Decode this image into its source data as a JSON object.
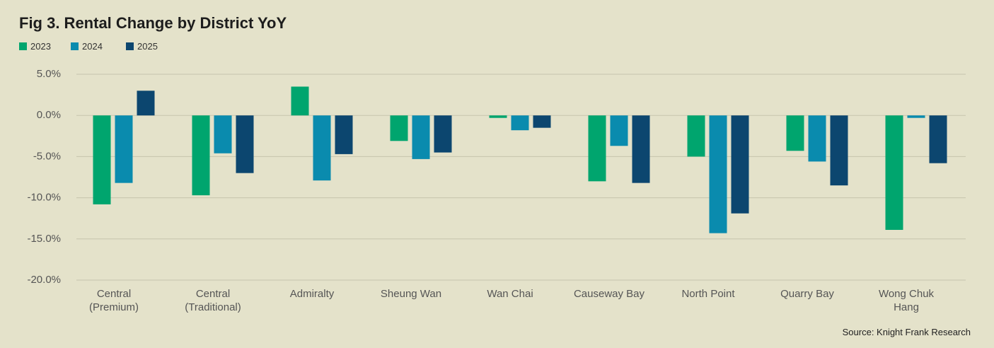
{
  "chart_data": {
    "type": "bar",
    "title": "Fig 3. Rental Change by District YoY",
    "source": "Source: Knight Frank Research",
    "categories": [
      "Central\n(Premium)",
      "Central\n(Traditional)",
      "Admiralty",
      "Sheung Wan",
      "Wan Chai",
      "Causeway Bay",
      "North Point",
      "Quarry Bay",
      "Wong Chuk\nHang"
    ],
    "series": [
      {
        "name": "2023",
        "color": "#00a56e",
        "values": [
          -10.8,
          -9.7,
          3.5,
          -3.1,
          -0.3,
          -8.0,
          -5.0,
          -4.3,
          -13.9
        ]
      },
      {
        "name": "2024",
        "color": "#0a8bae",
        "values": [
          -8.2,
          -4.6,
          -7.9,
          -5.3,
          -1.8,
          -3.7,
          -14.3,
          -5.6,
          -0.3
        ]
      },
      {
        "name": "2025",
        "color": "#0c466f",
        "values": [
          3.0,
          -7.0,
          -4.7,
          -4.5,
          -1.5,
          -8.2,
          -11.9,
          -8.5,
          -5.8
        ]
      }
    ],
    "ylim": [
      -20,
      5
    ],
    "yticks": [
      {
        "value": -20,
        "label": "-20.0%"
      },
      {
        "value": -15,
        "label": "-15.0%"
      },
      {
        "value": -10,
        "label": "-10.0%"
      },
      {
        "value": -5,
        "label": "-5.0%"
      },
      {
        "value": 0,
        "label": "0.0%"
      },
      {
        "value": 5,
        "label": "5.0%"
      }
    ],
    "grid": true,
    "legend": "top-left"
  }
}
